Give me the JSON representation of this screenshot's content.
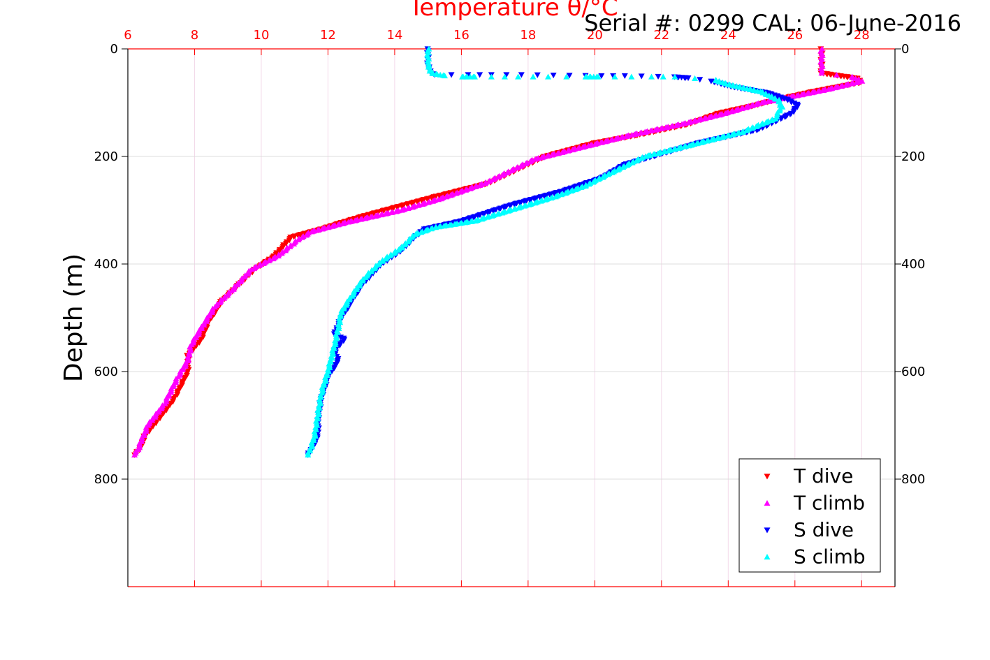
{
  "chart_data": {
    "type": "scatter",
    "title": "Temperature θ/°C",
    "subtitle": "Serial #: 0299 CAL: 06-June-2016",
    "xlabel": "Temperature θ/°C",
    "ylabel": "Depth (m)",
    "xlim": [
      6,
      29
    ],
    "ylim": [
      0,
      1000
    ],
    "y_reversed": true,
    "x_axis_position": "top",
    "x_axis_color": "#ff0000",
    "x_ticks": [
      "6",
      "8",
      "10",
      "12",
      "14",
      "16",
      "18",
      "20",
      "22",
      "24",
      "26",
      "28"
    ],
    "y_ticks": [
      "0",
      "200",
      "400",
      "600",
      "800"
    ],
    "grid": true,
    "legend_position": "bottom-right",
    "series": [
      {
        "name": "T dive",
        "color": "#ff0000",
        "marker": "triangle-down",
        "points": [
          [
            26.8,
            0
          ],
          [
            26.8,
            20
          ],
          [
            26.8,
            45
          ],
          [
            27.9,
            55
          ],
          [
            28.0,
            62
          ],
          [
            26.5,
            80
          ],
          [
            25.4,
            95
          ],
          [
            24.8,
            105
          ],
          [
            23.7,
            120
          ],
          [
            22.8,
            140
          ],
          [
            21.3,
            160
          ],
          [
            20.0,
            175
          ],
          [
            18.5,
            200
          ],
          [
            16.8,
            250
          ],
          [
            15.2,
            275
          ],
          [
            14.0,
            295
          ],
          [
            13.0,
            312
          ],
          [
            12.3,
            325
          ],
          [
            11.8,
            335
          ],
          [
            10.9,
            350
          ],
          [
            10.4,
            385
          ],
          [
            9.8,
            410
          ],
          [
            9.3,
            440
          ],
          [
            8.8,
            470
          ],
          [
            8.4,
            510
          ],
          [
            8.2,
            540
          ],
          [
            7.8,
            570
          ],
          [
            7.8,
            600
          ],
          [
            7.4,
            650
          ],
          [
            6.9,
            690
          ],
          [
            6.5,
            720
          ],
          [
            6.4,
            740
          ],
          [
            6.2,
            755
          ]
        ]
      },
      {
        "name": "T climb",
        "color": "#ff00ff",
        "marker": "triangle-up",
        "points": [
          [
            26.8,
            0
          ],
          [
            26.8,
            20
          ],
          [
            26.8,
            45
          ],
          [
            27.7,
            52
          ],
          [
            28.0,
            60
          ],
          [
            27.0,
            75
          ],
          [
            25.8,
            90
          ],
          [
            25.0,
            100
          ],
          [
            23.9,
            120
          ],
          [
            22.6,
            140
          ],
          [
            21.1,
            160
          ],
          [
            19.8,
            180
          ],
          [
            18.2,
            205
          ],
          [
            16.7,
            250
          ],
          [
            15.3,
            280
          ],
          [
            14.2,
            300
          ],
          [
            12.6,
            322
          ],
          [
            11.5,
            340
          ],
          [
            11.1,
            355
          ],
          [
            10.5,
            385
          ],
          [
            9.7,
            410
          ],
          [
            9.1,
            450
          ],
          [
            8.6,
            480
          ],
          [
            8.2,
            520
          ],
          [
            7.9,
            550
          ],
          [
            7.8,
            580
          ],
          [
            7.5,
            610
          ],
          [
            7.1,
            660
          ],
          [
            6.6,
            700
          ],
          [
            6.4,
            730
          ],
          [
            6.3,
            745
          ],
          [
            6.2,
            755
          ]
        ]
      },
      {
        "name": "S dive",
        "color": "#0000ff",
        "marker": "triangle-down",
        "points": [
          [
            15.0,
            0
          ],
          [
            15.0,
            30
          ],
          [
            15.1,
            45
          ],
          [
            15.2,
            48
          ],
          [
            16.2,
            48
          ],
          [
            16.9,
            48
          ],
          [
            17.8,
            48
          ],
          [
            20.2,
            50
          ],
          [
            20.9,
            50
          ],
          [
            22.4,
            52
          ],
          [
            22.8,
            54
          ],
          [
            23.5,
            60
          ],
          [
            24.1,
            70
          ],
          [
            25.2,
            82
          ],
          [
            25.8,
            95
          ],
          [
            26.1,
            105
          ],
          [
            25.9,
            120
          ],
          [
            24.9,
            150
          ],
          [
            23.1,
            175
          ],
          [
            22.0,
            195
          ],
          [
            20.9,
            215
          ],
          [
            20.2,
            240
          ],
          [
            19.0,
            265
          ],
          [
            17.5,
            290
          ],
          [
            17.0,
            300
          ],
          [
            16.0,
            320
          ],
          [
            14.9,
            335
          ],
          [
            14.6,
            350
          ],
          [
            14.2,
            375
          ],
          [
            13.6,
            400
          ],
          [
            13.0,
            440
          ],
          [
            12.7,
            470
          ],
          [
            12.4,
            500
          ],
          [
            12.2,
            530
          ],
          [
            12.5,
            540
          ],
          [
            12.2,
            560
          ],
          [
            12.3,
            580
          ],
          [
            12.0,
            610
          ],
          [
            11.8,
            650
          ],
          [
            11.7,
            690
          ],
          [
            11.7,
            720
          ],
          [
            11.5,
            745
          ],
          [
            11.4,
            755
          ]
        ]
      },
      {
        "name": "S climb",
        "color": "#00ffff",
        "marker": "triangle-up",
        "points": [
          [
            15.0,
            0
          ],
          [
            15.0,
            30
          ],
          [
            15.1,
            45
          ],
          [
            15.5,
            50
          ],
          [
            16.0,
            52
          ],
          [
            16.4,
            52
          ],
          [
            16.9,
            52
          ],
          [
            17.7,
            52
          ],
          [
            18.6,
            52
          ],
          [
            19.7,
            52
          ],
          [
            20.1,
            52
          ],
          [
            20.6,
            52
          ],
          [
            21.1,
            52
          ],
          [
            21.7,
            52
          ],
          [
            22.4,
            52
          ],
          [
            23.0,
            55
          ],
          [
            23.6,
            58
          ],
          [
            24.0,
            66
          ],
          [
            25.0,
            80
          ],
          [
            25.5,
            95
          ],
          [
            25.6,
            108
          ],
          [
            25.4,
            130
          ],
          [
            24.4,
            155
          ],
          [
            22.8,
            180
          ],
          [
            21.5,
            200
          ],
          [
            20.5,
            230
          ],
          [
            19.7,
            255
          ],
          [
            18.8,
            275
          ],
          [
            18.0,
            290
          ],
          [
            17.2,
            305
          ],
          [
            16.4,
            320
          ],
          [
            15.2,
            332
          ],
          [
            14.6,
            345
          ],
          [
            14.2,
            370
          ],
          [
            13.6,
            395
          ],
          [
            13.1,
            425
          ],
          [
            12.7,
            460
          ],
          [
            12.4,
            490
          ],
          [
            12.3,
            520
          ],
          [
            12.2,
            550
          ],
          [
            12.1,
            575
          ],
          [
            12.0,
            600
          ],
          [
            11.8,
            640
          ],
          [
            11.7,
            680
          ],
          [
            11.6,
            720
          ],
          [
            11.5,
            740
          ],
          [
            11.4,
            755
          ]
        ]
      }
    ]
  }
}
